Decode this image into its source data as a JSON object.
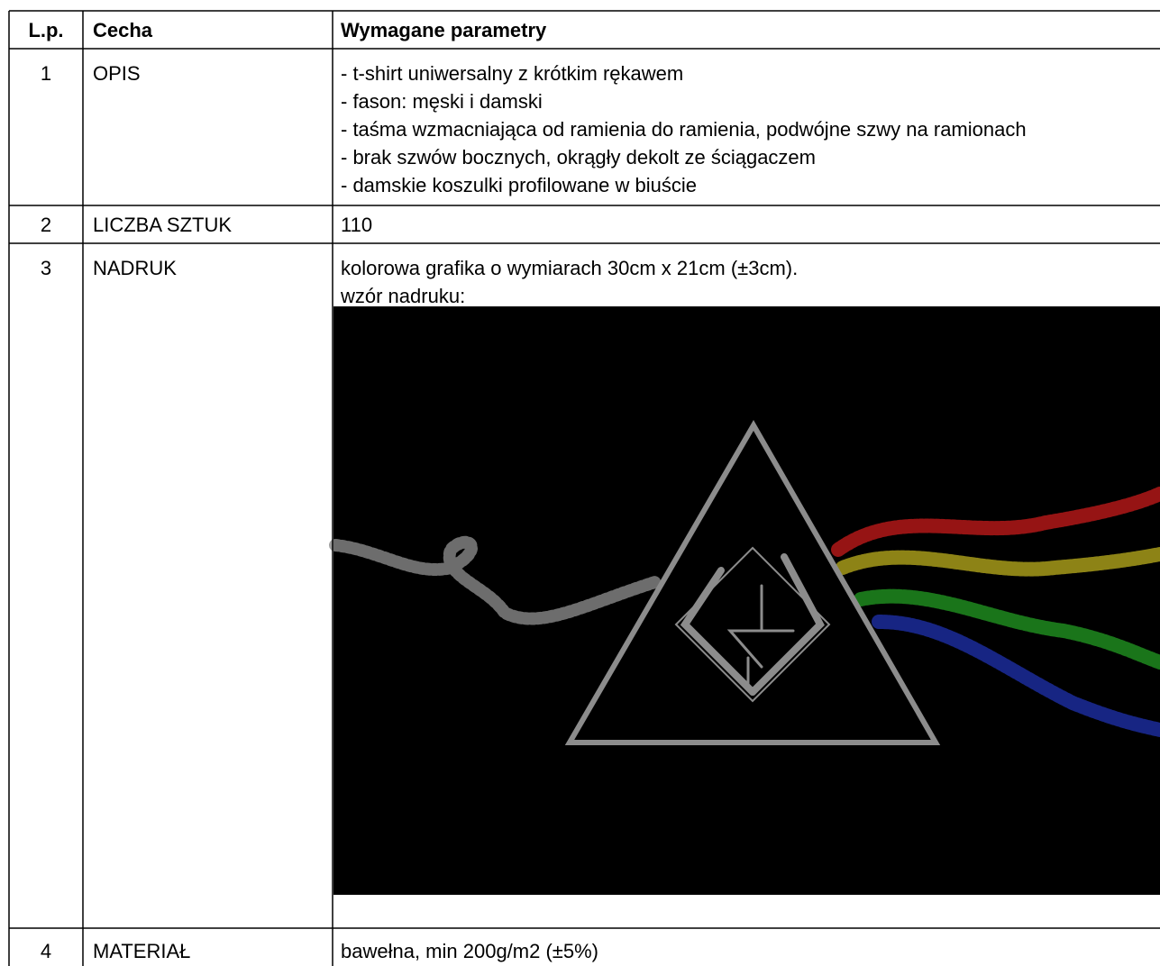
{
  "header": {
    "columns": [
      "L.p.",
      "Cecha",
      "Wymagane parametry"
    ]
  },
  "table": {
    "rows": [
      {
        "lp": "1",
        "feature": "OPIS",
        "lines": [
          "- t-shirt uniwersalny z krótkim rękawem",
          "- fason: męski i damski",
          "- taśma wzmacniająca od ramienia do ramienia, podwójne szwy na ramionach",
          "- brak szwów bocznych, okrągły dekolt ze ściągaczem",
          "- damskie koszulki profilowane w biuście"
        ]
      },
      {
        "lp": "2",
        "feature": "LICZBA SZTUK",
        "lines": [
          "110"
        ]
      },
      {
        "lp": "3",
        "feature": "NADRUK",
        "lines": [
          "kolorowa grafika o wymiarach 30cm x 21cm (±3cm).",
          "wzór nadruku:"
        ]
      },
      {
        "lp": "4",
        "feature": "MATERIAŁ",
        "lines": [
          "bawełna, min 200g/m2 (±5%)"
        ]
      }
    ]
  }
}
